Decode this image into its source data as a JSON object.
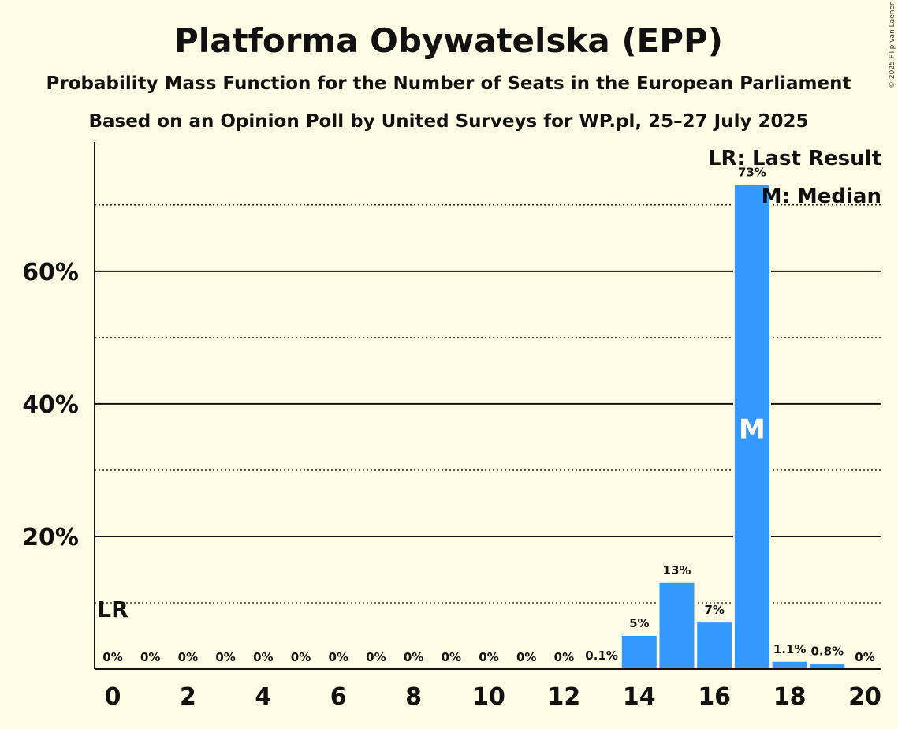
{
  "chart_data": {
    "type": "bar",
    "title": "Platforma Obywatelska (EPP)",
    "subtitle": "Probability Mass Function for the Number of Seats in the European Parliament",
    "subtitle2": "Based on an Opinion Poll by United Surveys for WP.pl, 25–27 July 2025",
    "copyright": "© 2025 Filip van Laenen",
    "x": [
      0,
      1,
      2,
      3,
      4,
      5,
      6,
      7,
      8,
      9,
      10,
      11,
      12,
      13,
      14,
      15,
      16,
      17,
      18,
      19,
      20
    ],
    "values": [
      0,
      0,
      0,
      0,
      0,
      0,
      0,
      0,
      0,
      0,
      0,
      0,
      0,
      0.1,
      5,
      13,
      7,
      73,
      1.1,
      0.8,
      0
    ],
    "value_labels": [
      "0%",
      "0%",
      "0%",
      "0%",
      "0%",
      "0%",
      "0%",
      "0%",
      "0%",
      "0%",
      "0%",
      "0%",
      "0%",
      "0.1%",
      "5%",
      "13%",
      "7%",
      "73%",
      "1.1%",
      "0.8%",
      "0%"
    ],
    "x_tick_values": [
      0,
      2,
      4,
      6,
      8,
      10,
      12,
      14,
      16,
      18,
      20
    ],
    "x_tick_labels": [
      "0",
      "2",
      "4",
      "6",
      "8",
      "10",
      "12",
      "14",
      "16",
      "18",
      "20"
    ],
    "y_tick_values": [
      20,
      40,
      60
    ],
    "y_tick_labels": [
      "20%",
      "40%",
      "60%"
    ],
    "y_minor_gridlines": [
      10,
      30,
      50,
      70
    ],
    "ylim": [
      0,
      79.5
    ],
    "xlabel": "",
    "ylabel": "",
    "bar_color": "#3399ff",
    "last_result_seat": 0,
    "last_result_marker": "LR",
    "median_seat": 17,
    "median_marker": "M",
    "legend": {
      "placement": "top-right",
      "last_result": "LR: Last Result",
      "median": "M: Median"
    }
  }
}
